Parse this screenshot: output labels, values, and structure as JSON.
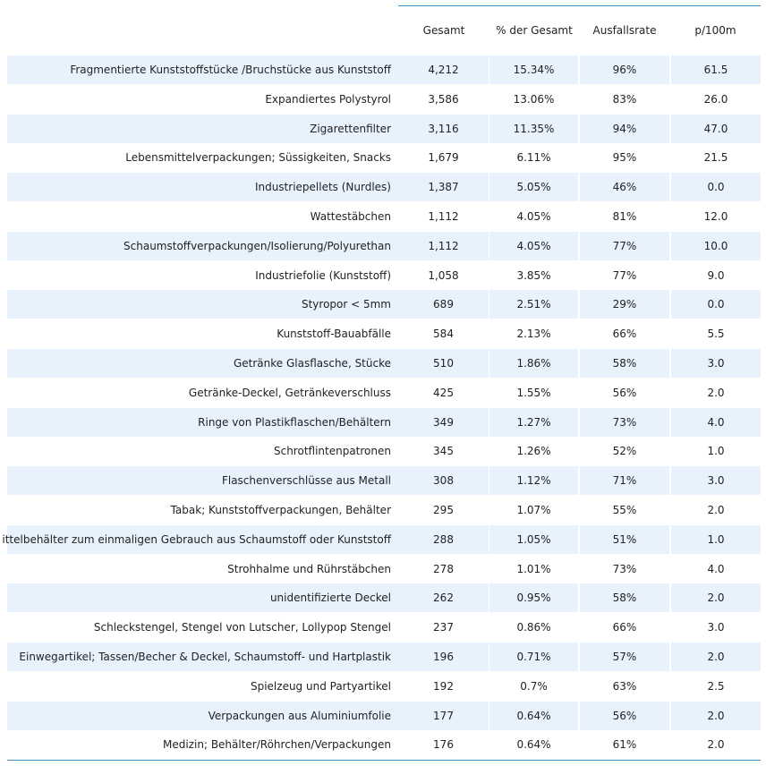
{
  "chart_data": {
    "type": "table",
    "columns": [
      "",
      "Gesamt",
      "% der Gesamt",
      "Ausfallsrate",
      "p/100m"
    ],
    "rows": [
      {
        "label": "Fragmentierte Kunststoffstücke /Bruchstücke aus Kunststoff",
        "gesamt": "4,212",
        "pct": "15.34%",
        "rate": "96%",
        "p100m": "61.5"
      },
      {
        "label": "Expandiertes Polystyrol",
        "gesamt": "3,586",
        "pct": "13.06%",
        "rate": "83%",
        "p100m": "26.0"
      },
      {
        "label": "Zigarettenfilter",
        "gesamt": "3,116",
        "pct": "11.35%",
        "rate": "94%",
        "p100m": "47.0"
      },
      {
        "label": "Lebensmittelverpackungen; Süssigkeiten, Snacks",
        "gesamt": "1,679",
        "pct": "6.11%",
        "rate": "95%",
        "p100m": "21.5"
      },
      {
        "label": "Industriepellets (Nurdles)",
        "gesamt": "1,387",
        "pct": "5.05%",
        "rate": "46%",
        "p100m": "0.0"
      },
      {
        "label": "Wattestäbchen",
        "gesamt": "1,112",
        "pct": "4.05%",
        "rate": "81%",
        "p100m": "12.0"
      },
      {
        "label": "Schaumstoffverpackungen/Isolierung/Polyurethan",
        "gesamt": "1,112",
        "pct": "4.05%",
        "rate": "77%",
        "p100m": "10.0"
      },
      {
        "label": "Industriefolie (Kunststoff)",
        "gesamt": "1,058",
        "pct": "3.85%",
        "rate": "77%",
        "p100m": "9.0"
      },
      {
        "label": "Styropor < 5mm",
        "gesamt": "689",
        "pct": "2.51%",
        "rate": "29%",
        "p100m": "0.0"
      },
      {
        "label": "Kunststoff-Bauabfälle",
        "gesamt": "584",
        "pct": "2.13%",
        "rate": "66%",
        "p100m": "5.5"
      },
      {
        "label": "Getränke Glasflasche, Stücke",
        "gesamt": "510",
        "pct": "1.86%",
        "rate": "58%",
        "p100m": "3.0"
      },
      {
        "label": "Getränke-Deckel, Getränkeverschluss",
        "gesamt": "425",
        "pct": "1.55%",
        "rate": "56%",
        "p100m": "2.0"
      },
      {
        "label": "Ringe von Plastikflaschen/Behältern",
        "gesamt": "349",
        "pct": "1.27%",
        "rate": "73%",
        "p100m": "4.0"
      },
      {
        "label": "Schrotflintenpatronen",
        "gesamt": "345",
        "pct": "1.26%",
        "rate": "52%",
        "p100m": "1.0"
      },
      {
        "label": "Flaschenverschlüsse aus Metall",
        "gesamt": "308",
        "pct": "1.12%",
        "rate": "71%",
        "p100m": "3.0"
      },
      {
        "label": "Tabak; Kunststoffverpackungen, Behälter",
        "gesamt": "295",
        "pct": "1.07%",
        "rate": "55%",
        "p100m": "2.0"
      },
      {
        "label": "ittelbehälter zum einmaligen Gebrauch aus Schaumstoff oder Kunststoff",
        "gesamt": "288",
        "pct": "1.05%",
        "rate": "51%",
        "p100m": "1.0"
      },
      {
        "label": "Strohhalme und Rührstäbchen",
        "gesamt": "278",
        "pct": "1.01%",
        "rate": "73%",
        "p100m": "4.0"
      },
      {
        "label": "unidentifizierte Deckel",
        "gesamt": "262",
        "pct": "0.95%",
        "rate": "58%",
        "p100m": "2.0"
      },
      {
        "label": "Schleckstengel, Stengel von Lutscher, Lollypop Stengel",
        "gesamt": "237",
        "pct": "0.86%",
        "rate": "66%",
        "p100m": "3.0"
      },
      {
        "label": "Einwegartikel; Tassen/Becher & Deckel, Schaumstoff- und Hartplastik",
        "gesamt": "196",
        "pct": "0.71%",
        "rate": "57%",
        "p100m": "2.0"
      },
      {
        "label": "Spielzeug und Partyartikel",
        "gesamt": "192",
        "pct": "0.7%",
        "rate": "63%",
        "p100m": "2.5"
      },
      {
        "label": "Verpackungen aus Aluminiumfolie",
        "gesamt": "177",
        "pct": "0.64%",
        "rate": "56%",
        "p100m": "2.0"
      },
      {
        "label": "Medizin; Behälter/Röhrchen/Verpackungen",
        "gesamt": "176",
        "pct": "0.64%",
        "rate": "61%",
        "p100m": "2.0"
      }
    ]
  },
  "colors": {
    "row_shade": "#e8f2fd",
    "rule": "#3d8fbf",
    "text": "#222222"
  }
}
